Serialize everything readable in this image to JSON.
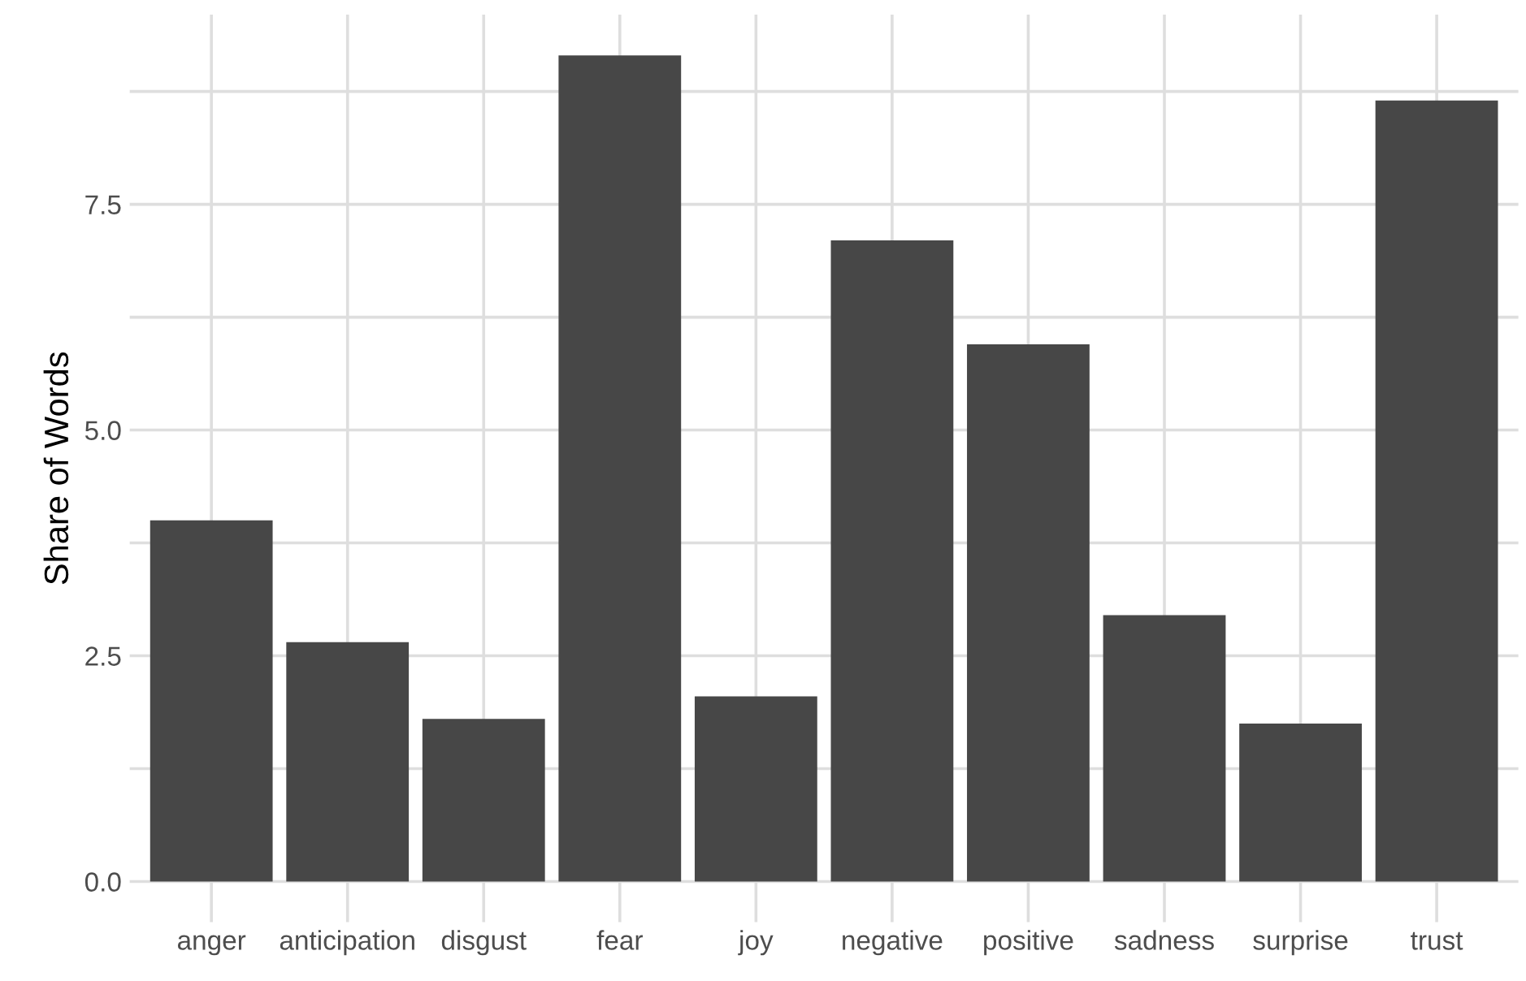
{
  "chart_data": {
    "type": "bar",
    "ylabel": "Share of Words",
    "categories": [
      "anger",
      "anticipation",
      "disgust",
      "fear",
      "joy",
      "negative",
      "positive",
      "sadness",
      "surprise",
      "trust"
    ],
    "values": [
      4.0,
      2.65,
      1.8,
      9.15,
      2.05,
      7.1,
      5.95,
      2.95,
      1.75,
      8.65
    ],
    "color": "#474747",
    "ylim": [
      -0.45,
      9.6
    ],
    "yticks": [
      {
        "value": 0,
        "label": "0.0"
      },
      {
        "value": 1.25,
        "label": null
      },
      2.5,
      {
        "value": 3.75,
        "label": null
      },
      {
        "value": 5,
        "label": "5.0"
      },
      {
        "value": 6.25,
        "label": null
      },
      7.5,
      {
        "value": 8.75,
        "label": null
      }
    ],
    "grid": true
  }
}
